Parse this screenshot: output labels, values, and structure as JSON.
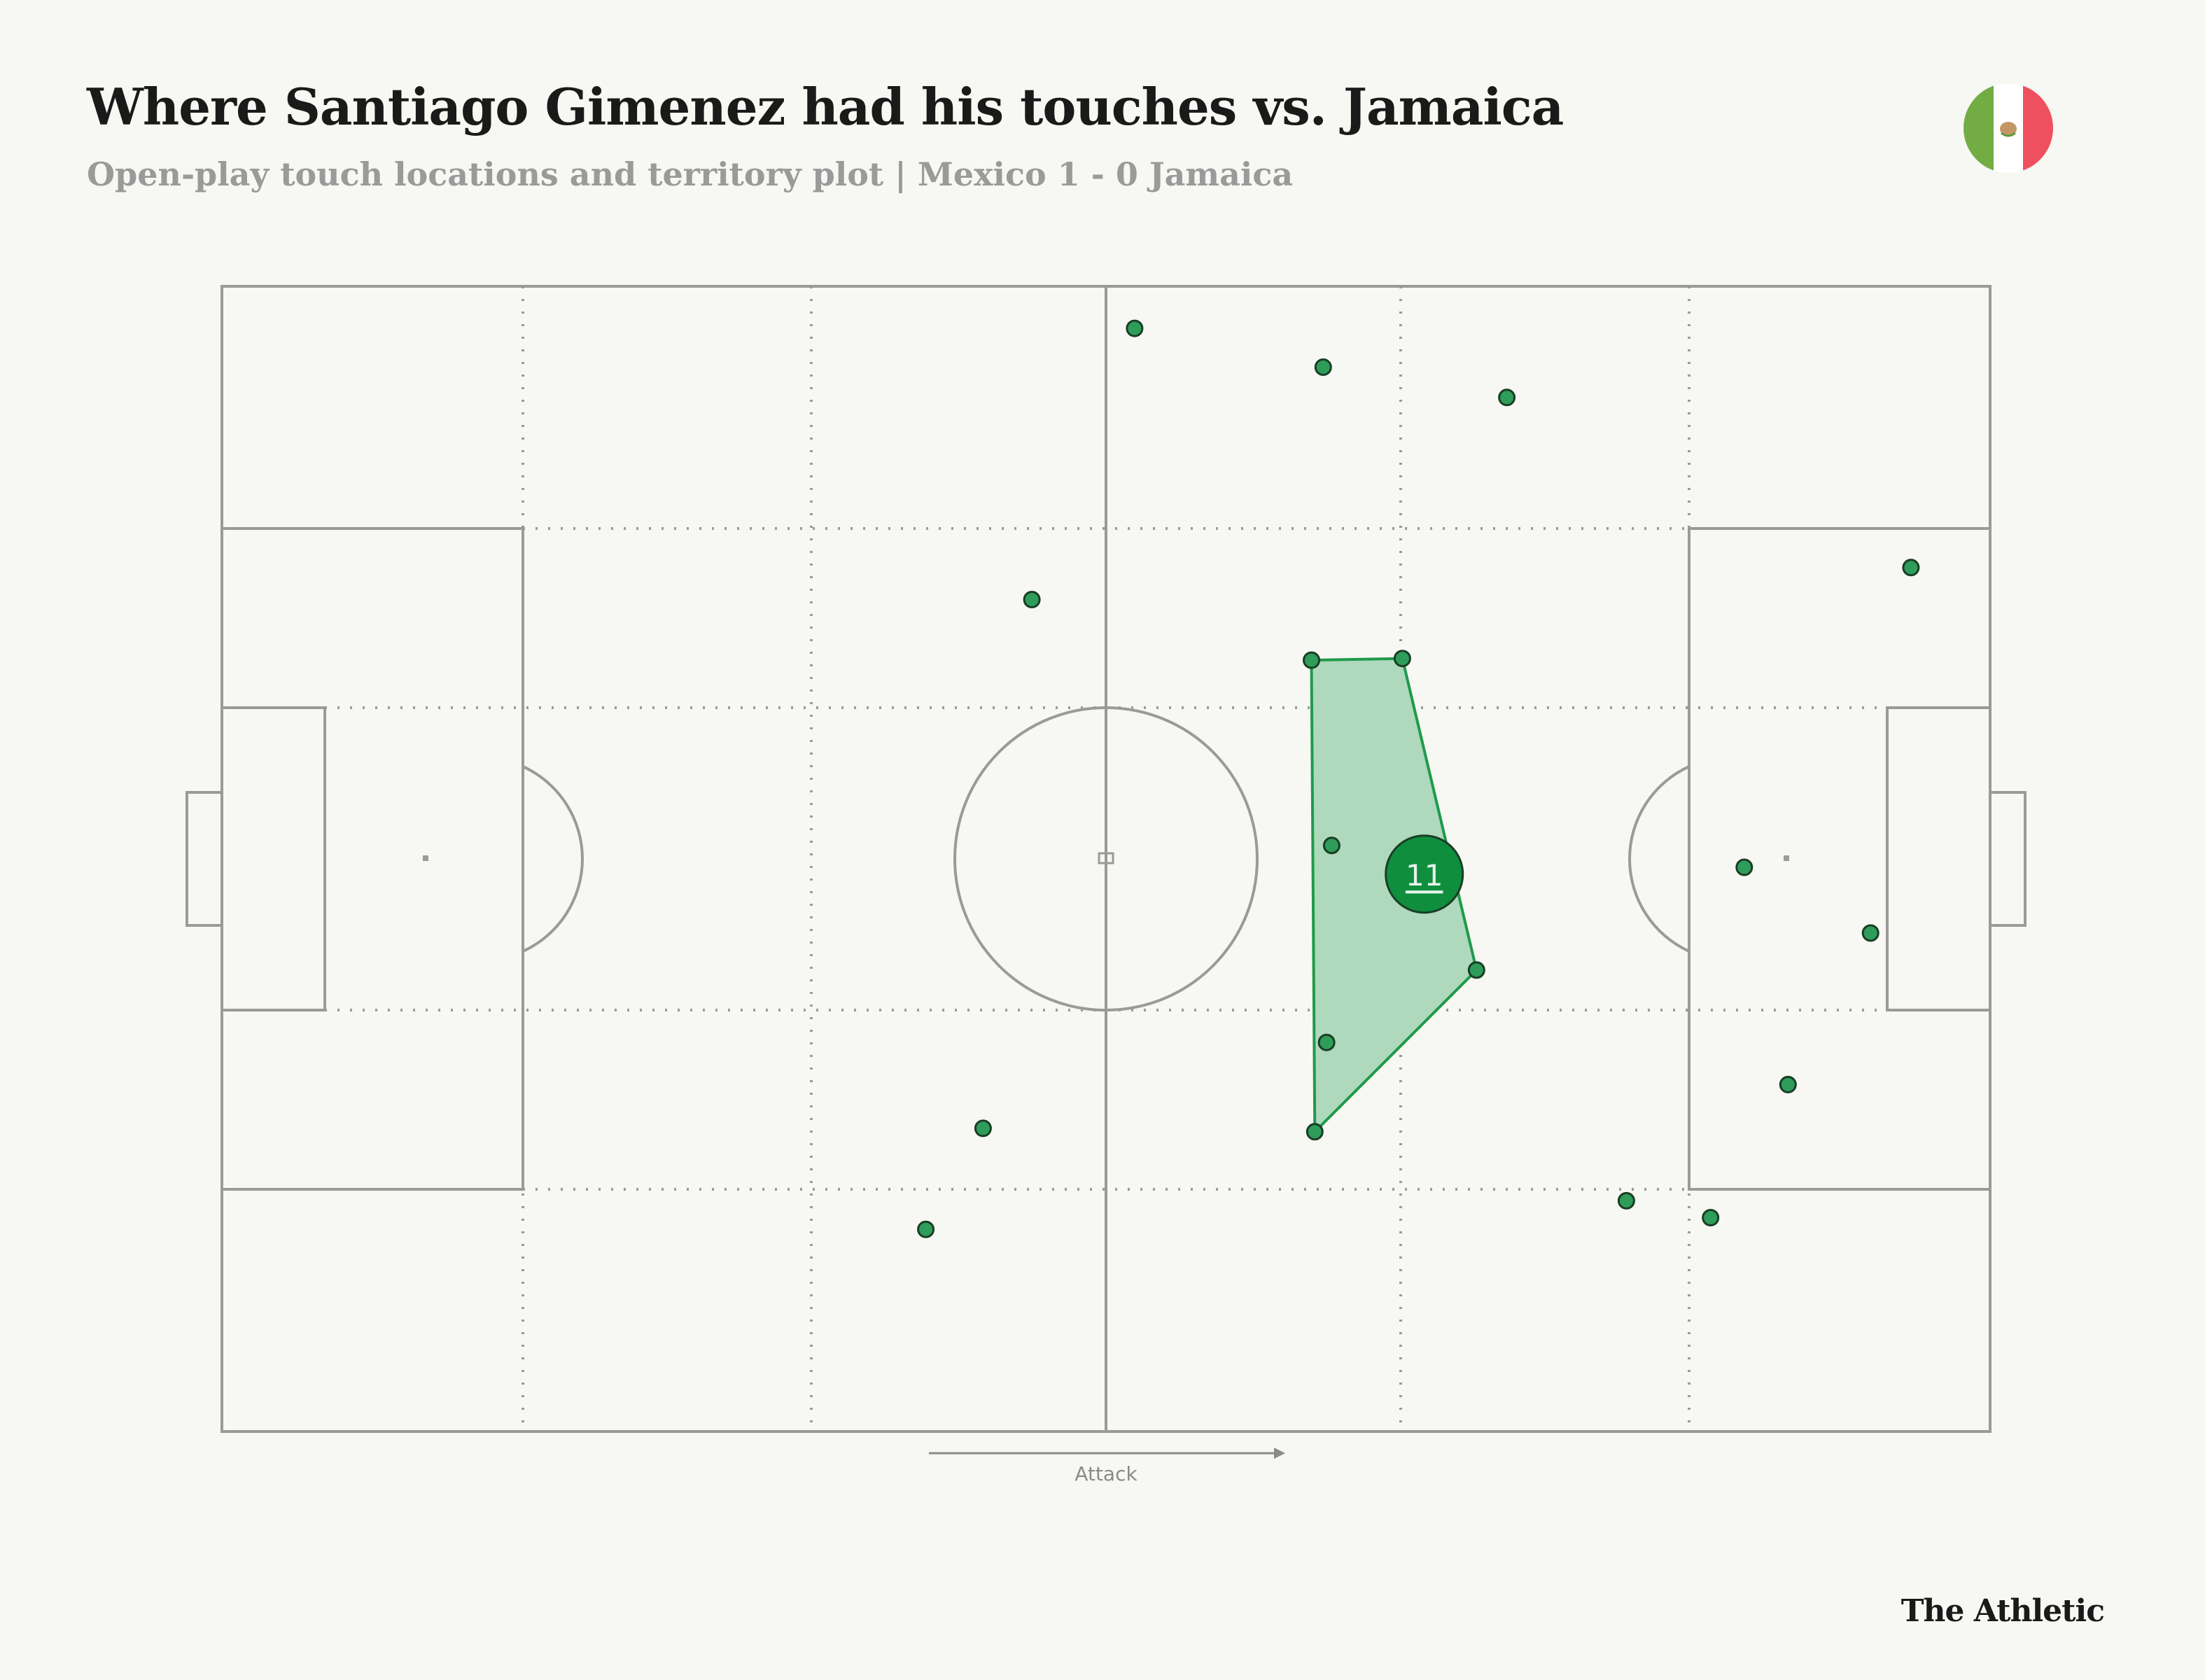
{
  "header": {
    "title": "Where Santiago Gimenez had his touches vs. Jamaica",
    "subtitle": "Open-play touch locations and territory plot |  Mexico 1 - 0 Jamaica"
  },
  "brand": {
    "logo_text": "The Athletic"
  },
  "flag": {
    "icon": "mexico-flag-icon",
    "colors": [
      "#74ac44",
      "#ffffff",
      "#ef5060"
    ]
  },
  "colors": {
    "background": "#f7f7f3",
    "pitch_lines": "#9a9a9a",
    "touch_fill": "#2e9d5a",
    "touch_stroke": "#1a3d24",
    "territory_fill": "#aed9bc",
    "territory_stroke": "#1f9a4a",
    "player_marker": "#0f8f3e"
  },
  "chart_data": {
    "type": "scatter",
    "pitch": {
      "length": 105,
      "width": 68,
      "attack_direction": "left-to-right"
    },
    "direction_label": "Attack",
    "touches": [
      {
        "x": 54.2,
        "y": 65.5
      },
      {
        "x": 65.4,
        "y": 63.2
      },
      {
        "x": 76.3,
        "y": 61.4
      },
      {
        "x": 100.3,
        "y": 51.3
      },
      {
        "x": 48.1,
        "y": 49.4
      },
      {
        "x": 64.7,
        "y": 45.8
      },
      {
        "x": 70.1,
        "y": 45.9
      },
      {
        "x": 65.9,
        "y": 34.8
      },
      {
        "x": 74.5,
        "y": 27.4
      },
      {
        "x": 90.4,
        "y": 33.5
      },
      {
        "x": 97.9,
        "y": 29.6
      },
      {
        "x": 65.6,
        "y": 23.1
      },
      {
        "x": 93.0,
        "y": 20.6
      },
      {
        "x": 45.2,
        "y": 18.0
      },
      {
        "x": 64.9,
        "y": 17.8
      },
      {
        "x": 83.4,
        "y": 13.7
      },
      {
        "x": 88.4,
        "y": 12.7
      },
      {
        "x": 41.8,
        "y": 12.0
      }
    ],
    "territory_hull": [
      {
        "x": 64.7,
        "y": 45.8
      },
      {
        "x": 70.1,
        "y": 45.9
      },
      {
        "x": 74.5,
        "y": 27.4
      },
      {
        "x": 64.9,
        "y": 17.8
      }
    ],
    "average_position": {
      "x": 71.4,
      "y": 33.1,
      "label": "11"
    }
  }
}
